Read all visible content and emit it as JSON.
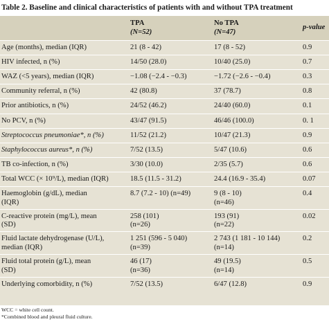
{
  "table": {
    "title": "Table 2. Baseline and clinical characteristics of patients with and without TPA treatment",
    "headers": [
      {
        "label": "",
        "sublabel": ""
      },
      {
        "label": "TPA",
        "sublabel": "(N=52)"
      },
      {
        "label": "No TPA",
        "sublabel": "(N=47)"
      },
      {
        "label": "p-value",
        "sublabel": ""
      }
    ],
    "rows": [
      {
        "label": "Age (months), median (IQR)",
        "tpa": "21 (8 - 42)",
        "notpa": "17 (8 - 52)",
        "p": "0.9"
      },
      {
        "label": "HIV infected, n (%)",
        "tpa": "14/50 (28.0)",
        "notpa": "10/40 (25.0)",
        "p": "0.7"
      },
      {
        "label": "WAZ (<5 years), median (IQR)",
        "tpa": "−1.08 (−2.4 - −0.3)",
        "notpa": "−1.72 (−2.6 - −0.4)",
        "p": "0.3"
      },
      {
        "label": "Community referral, n (%)",
        "tpa": "42 (80.8)",
        "notpa": "37 (78.7)",
        "p": "0.8"
      },
      {
        "label": "Prior antibiotics, n (%)",
        "tpa": "24/52 (46.2)",
        "notpa": "24/40 (60.0)",
        "p": "0.1"
      },
      {
        "label": "No PCV, n (%)",
        "tpa": "43/47 (91.5)",
        "notpa": "46/46 (100.0)",
        "p": "0. 1"
      },
      {
        "label": "Streptococcus pneumoniae*, n (%)",
        "tpa": "11/52 (21.2)",
        "notpa": "10/47 (21.3)",
        "p": "0.9"
      },
      {
        "label": "Staphylococcus aureus*, n (%)",
        "tpa": "7/52 (13.5)",
        "notpa": "5/47 (10.6)",
        "p": "0.6"
      },
      {
        "label": "TB co-infection, n (%)",
        "tpa": "3/30 (10.0)",
        "notpa": "2/35 (5.7)",
        "p": "0.6"
      },
      {
        "label": "Total WCC (× 10⁹/L), median (IQR)",
        "tpa": "18.5 (11.5 - 31.2)",
        "notpa": "24.4 (16.9 - 35.4)",
        "p": "0.07"
      },
      {
        "label": "Haemoglobin (g/dL), median",
        "label2": "(IQR)",
        "tpa": "8.7 (7.2 - 10) (n=49)",
        "notpa": "9 (8 - 10)",
        "notpa2": "(n=46)",
        "p": "0.4"
      },
      {
        "label": "C-reactive protein (mg/L), mean",
        "label2": "(SD)",
        "tpa": "258 (101)",
        "tpa2": "(n=26)",
        "notpa": "193 (91)",
        "notpa2": "(n=22)",
        "p": "0.02"
      },
      {
        "label": "Fluid lactate dehydrogenase (U/L),",
        "label2": "median (IQR)",
        "tpa": "1 251 (596 - 5 040)",
        "tpa2": "(n=39)",
        "notpa": "2 743 (1 181 - 10 144)",
        "notpa2": "(n=14)",
        "p": "0.2"
      },
      {
        "label": "Fluid total protein (g/L), mean",
        "label2": "(SD)",
        "tpa": "46 (17)",
        "tpa2": "(n=36)",
        "notpa": "49 (19.5)",
        "notpa2": "(n=14)",
        "p": "0.5"
      },
      {
        "label": "Underlying comorbidity, n (%)",
        "tpa": "7/52 (13.5)",
        "notpa": "6/47 (12.8)",
        "p": "0.9"
      }
    ],
    "footnotes": [
      "WCC = white cell count.",
      "*Combined blood and pleural fluid culture."
    ]
  }
}
